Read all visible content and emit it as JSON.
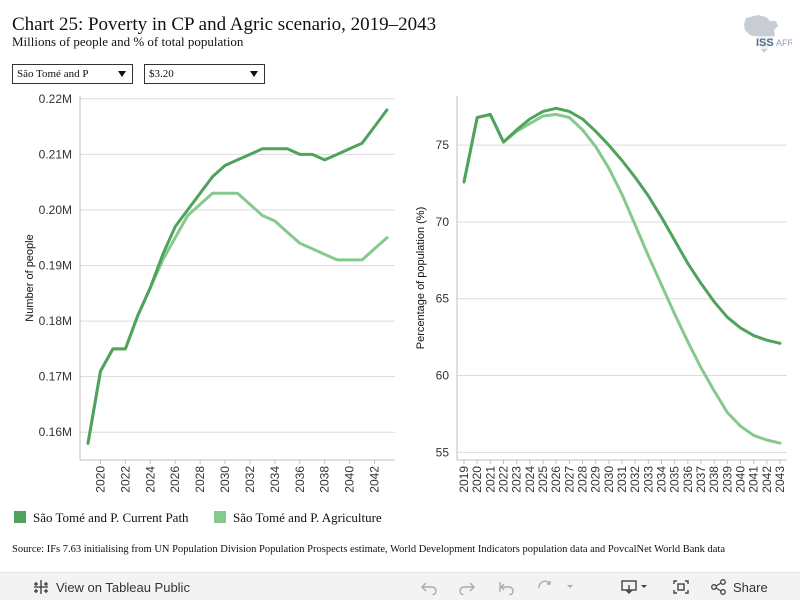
{
  "header": {
    "title": "Chart 25: Poverty in CP and Agric scenario, 2019–2043",
    "subtitle": "Millions of people and % of total population",
    "logo_text": "ISS AFRICA"
  },
  "filters": {
    "country": "São Tomé and P",
    "threshold": "$3.20"
  },
  "legend": [
    {
      "label": "São Tomé and P. Current Path",
      "color": "#4fa35a"
    },
    {
      "label": "São Tomé and P. Agriculture",
      "color": "#86c98e"
    }
  ],
  "source": "Source: IFs 7.63 initialising from UN Population Division Population Prospects estimate, World Development Indicators population data and PovcalNet World Bank data",
  "footer": {
    "view_label": "View on Tableau Public",
    "share_label": "Share"
  },
  "chart_data": [
    {
      "type": "line",
      "title": "",
      "xlabel": "",
      "ylabel": "Number of people",
      "xlim": [
        2019,
        2043
      ],
      "ylim": [
        0.155,
        0.2205
      ],
      "yticks": [
        0.16,
        0.17,
        0.18,
        0.19,
        0.2,
        0.21,
        0.22
      ],
      "ytick_labels": [
        "0.16M",
        "0.17M",
        "0.18M",
        "0.19M",
        "0.20M",
        "0.21M",
        "0.22M"
      ],
      "xticks": [
        2020,
        2022,
        2024,
        2026,
        2028,
        2030,
        2032,
        2034,
        2036,
        2038,
        2040,
        2042
      ],
      "xtick_labels": [
        "2020",
        "2022",
        "2024",
        "2026",
        "2028",
        "2030",
        "2032",
        "2034",
        "2036",
        "2038",
        "2040",
        "2042"
      ],
      "grid": true,
      "x": [
        2019,
        2020,
        2021,
        2022,
        2023,
        2024,
        2025,
        2026,
        2027,
        2028,
        2029,
        2030,
        2031,
        2032,
        2033,
        2034,
        2035,
        2036,
        2037,
        2038,
        2039,
        2040,
        2041,
        2042,
        2043
      ],
      "series": [
        {
          "name": "São Tomé and P. Current Path",
          "color": "#4fa35a",
          "values": [
            0.158,
            0.171,
            0.175,
            0.175,
            0.181,
            0.186,
            0.192,
            0.197,
            0.2,
            0.203,
            0.206,
            0.208,
            0.209,
            0.21,
            0.211,
            0.211,
            0.211,
            0.21,
            0.21,
            0.209,
            0.21,
            0.211,
            0.212,
            0.215,
            0.218
          ]
        },
        {
          "name": "São Tomé and P. Agriculture",
          "color": "#86c98e",
          "values": [
            0.158,
            0.171,
            0.175,
            0.175,
            0.181,
            0.186,
            0.191,
            0.195,
            0.199,
            0.201,
            0.203,
            0.203,
            0.203,
            0.201,
            0.199,
            0.198,
            0.196,
            0.194,
            0.193,
            0.192,
            0.191,
            0.191,
            0.191,
            0.193,
            0.195
          ]
        }
      ]
    },
    {
      "type": "line",
      "title": "",
      "xlabel": "",
      "ylabel": "Percentage of population (%)",
      "xlim": [
        2019,
        2043
      ],
      "ylim": [
        54.5,
        78.2
      ],
      "yticks": [
        55,
        60,
        65,
        70,
        75
      ],
      "ytick_labels": [
        "55",
        "60",
        "65",
        "70",
        "75"
      ],
      "xticks": [
        2019,
        2020,
        2021,
        2022,
        2023,
        2024,
        2025,
        2026,
        2027,
        2028,
        2029,
        2030,
        2031,
        2032,
        2033,
        2034,
        2035,
        2036,
        2037,
        2038,
        2039,
        2040,
        2041,
        2042,
        2043
      ],
      "xtick_labels": [
        "2019",
        "2020",
        "2021",
        "2022",
        "2023",
        "2024",
        "2025",
        "2026",
        "2027",
        "2028",
        "2029",
        "2030",
        "2031",
        "2032",
        "2033",
        "2034",
        "2035",
        "2036",
        "2037",
        "2038",
        "2039",
        "2040",
        "2041",
        "2042",
        "2043"
      ],
      "grid": true,
      "x": [
        2019,
        2020,
        2021,
        2022,
        2023,
        2024,
        2025,
        2026,
        2027,
        2028,
        2029,
        2030,
        2031,
        2032,
        2033,
        2034,
        2035,
        2036,
        2037,
        2038,
        2039,
        2040,
        2041,
        2042,
        2043
      ],
      "series": [
        {
          "name": "São Tomé and P. Current Path",
          "color": "#4fa35a",
          "values": [
            72.6,
            76.8,
            77.0,
            75.2,
            76.0,
            76.7,
            77.2,
            77.4,
            77.2,
            76.7,
            75.9,
            75.0,
            74.0,
            72.9,
            71.7,
            70.3,
            68.8,
            67.3,
            66.0,
            64.8,
            63.8,
            63.1,
            62.6,
            62.3,
            62.1
          ]
        },
        {
          "name": "São Tomé and P. Agriculture",
          "color": "#86c98e",
          "values": [
            72.6,
            76.8,
            77.0,
            75.2,
            75.9,
            76.4,
            76.9,
            77.0,
            76.8,
            76.0,
            74.9,
            73.5,
            71.8,
            69.8,
            67.8,
            65.9,
            64.0,
            62.2,
            60.5,
            59.0,
            57.6,
            56.7,
            56.1,
            55.8,
            55.6
          ]
        }
      ]
    }
  ]
}
